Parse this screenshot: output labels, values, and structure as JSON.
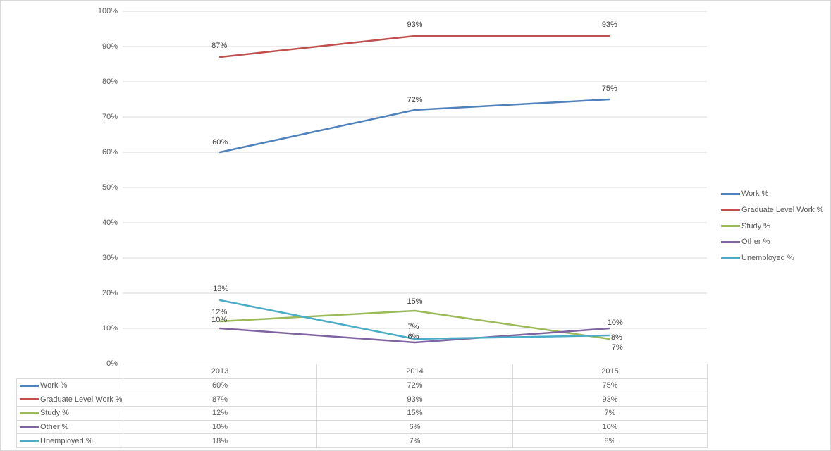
{
  "chart_data": {
    "type": "line",
    "title": "",
    "categories": [
      "2013",
      "2014",
      "2015"
    ],
    "series": [
      {
        "name": "Work %",
        "values": [
          60,
          72,
          75
        ],
        "labels": [
          "60%",
          "72%",
          "75%"
        ],
        "color": "#4F81BD"
      },
      {
        "name": "Graduate Level Work %",
        "values": [
          87,
          93,
          93
        ],
        "labels": [
          "87%",
          "93%",
          "93%"
        ],
        "color": "#C0504D"
      },
      {
        "name": "Study %",
        "values": [
          12,
          15,
          7
        ],
        "labels": [
          "12%",
          "15%",
          "7%"
        ],
        "color": "#9BBB59"
      },
      {
        "name": "Other %",
        "values": [
          10,
          6,
          10
        ],
        "labels": [
          "10%",
          "6%",
          "10%"
        ],
        "color": "#8064A2"
      },
      {
        "name": "Unemployed %",
        "values": [
          18,
          7,
          8
        ],
        "labels": [
          "18%",
          "7%",
          "8%"
        ],
        "color": "#4BACC6"
      }
    ],
    "xlabel": "",
    "ylabel": "",
    "ylim": [
      0,
      100
    ],
    "y_ticks": [
      "0%",
      "10%",
      "20%",
      "30%",
      "40%",
      "50%",
      "60%",
      "70%",
      "80%",
      "90%",
      "100%"
    ],
    "grid": true,
    "legend_position": "right",
    "has_data_table": true
  },
  "colors": {
    "gridline": "#D9D9D9",
    "canvas_border": "#D9D9D9",
    "axis_text": "#595959",
    "data_label_text": "#404040"
  }
}
